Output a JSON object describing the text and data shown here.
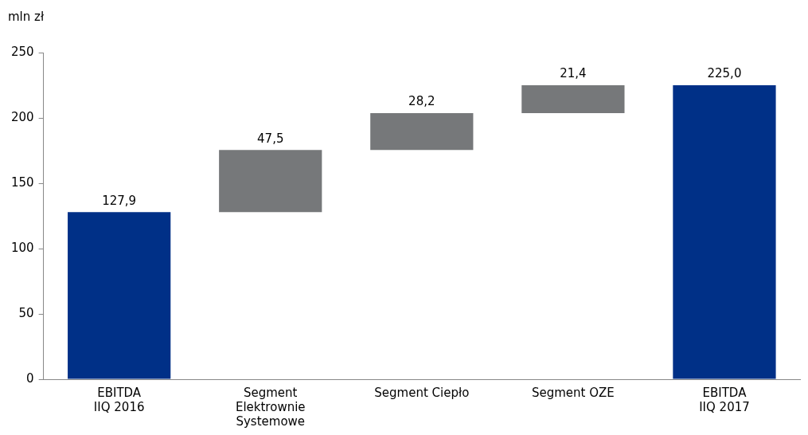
{
  "chart_data": {
    "type": "bar",
    "ylabel": "mln zł",
    "categories": [
      "EBITDA\nIIQ 2016",
      "Segment\nElektrownie\nSystemowe",
      "Segment Ciepło",
      "Segment OZE",
      "EBITDA\nIIQ 2017"
    ],
    "values": [
      127.9,
      47.5,
      28.2,
      21.4,
      225.0
    ],
    "base": [
      0,
      127.9,
      175.4,
      203.6,
      0
    ],
    "colors": [
      "#003087",
      "#76787a",
      "#76787a",
      "#76787a",
      "#003087"
    ],
    "value_labels": [
      "127,9",
      "47,5",
      "28,2",
      "21,4",
      "225,0"
    ],
    "ylim": [
      0,
      250
    ],
    "yticks": [
      0,
      50,
      100,
      150,
      200,
      250
    ],
    "grid": false,
    "legend": false
  }
}
